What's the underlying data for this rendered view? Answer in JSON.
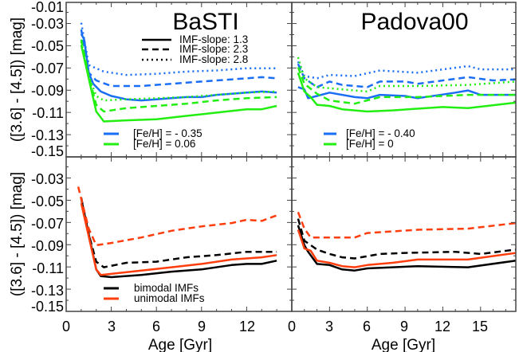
{
  "figure": {
    "ylabel": "([3.6] - [4.5]) [mag]",
    "xlabel": "Age [Gyr]",
    "y_ticks_top": [
      "-0.01",
      "-0.03",
      "-0.05",
      "-0.07",
      "-0.09",
      "-0.11",
      "-0.13",
      "-0.15"
    ],
    "y_ticks_bottom": [
      "-0.03",
      "-0.05",
      "-0.07",
      "-0.09",
      "-0.11",
      "-0.13",
      "-0.15"
    ],
    "x_ticks_left": [
      "0",
      "3",
      "6",
      "9",
      "12"
    ],
    "x_ticks_right": [
      "0",
      "3",
      "6",
      "9",
      "12",
      "15"
    ],
    "colors": {
      "blue": "#1a6ef5",
      "green": "#22ee11",
      "black": "#000000",
      "orange": "#ff3d0d"
    }
  },
  "chart_data": [
    {
      "type": "line",
      "panel": "top-left",
      "title": "BaSTI",
      "xlabel": "",
      "ylabel": "([3.6] - [4.5]) [mag]",
      "xlim": [
        0,
        15
      ],
      "ylim": [
        -0.151,
        -0.0115
      ],
      "legend": {
        "linestyles": [
          "IMF-slope: 1.3",
          "IMF-slope: 2.3",
          "IMF-slope: 2.8"
        ],
        "colors": [
          "[Fe/H] = - 0.35",
          "[Fe/H] = 0.06"
        ]
      },
      "series": [
        {
          "name": "[Fe/H]=-0.35, IMF-slope 1.3",
          "color": "blue",
          "style": "solid",
          "x": [
            1.0,
            1.2,
            1.5,
            1.8,
            2.3,
            3,
            4,
            5,
            6,
            7,
            8,
            9,
            10,
            11,
            12,
            13,
            14
          ],
          "y": [
            -0.04,
            -0.045,
            -0.075,
            -0.085,
            -0.092,
            -0.096,
            -0.099,
            -0.1,
            -0.099,
            -0.098,
            -0.097,
            -0.097,
            -0.095,
            -0.094,
            -0.093,
            -0.092,
            -0.093
          ]
        },
        {
          "name": "[Fe/H]=-0.35, IMF-slope 2.3",
          "color": "blue",
          "style": "dashed",
          "x": [
            1.0,
            1.5,
            2,
            3,
            5,
            7,
            9,
            11,
            13,
            14
          ],
          "y": [
            -0.036,
            -0.075,
            -0.082,
            -0.087,
            -0.087,
            -0.085,
            -0.083,
            -0.081,
            -0.079,
            -0.08
          ]
        },
        {
          "name": "[Fe/H]=-0.35, IMF-slope 2.8",
          "color": "blue",
          "style": "dotted",
          "x": [
            1.0,
            1.5,
            2.5,
            4,
            6,
            8,
            10,
            12,
            14
          ],
          "y": [
            -0.03,
            -0.068,
            -0.074,
            -0.077,
            -0.076,
            -0.074,
            -0.073,
            -0.071,
            -0.071
          ]
        },
        {
          "name": "[Fe/H]=0.06, IMF-slope 1.3",
          "color": "green",
          "style": "solid",
          "x": [
            1.0,
            1.5,
            2,
            2.5,
            4,
            6,
            8,
            10,
            12,
            13,
            14
          ],
          "y": [
            -0.05,
            -0.08,
            -0.11,
            -0.119,
            -0.118,
            -0.117,
            -0.114,
            -0.111,
            -0.108,
            -0.108,
            -0.105
          ]
        },
        {
          "name": "[Fe/H]=0.06, IMF-slope 2.3",
          "color": "green",
          "style": "dashed",
          "x": [
            1.0,
            1.5,
            2,
            2.5,
            4,
            6,
            8,
            10,
            12,
            14
          ],
          "y": [
            -0.045,
            -0.078,
            -0.104,
            -0.11,
            -0.107,
            -0.105,
            -0.103,
            -0.1,
            -0.098,
            -0.097
          ]
        },
        {
          "name": "[Fe/H]=0.06, IMF-slope 2.8",
          "color": "green",
          "style": "dotted",
          "x": [
            1.0,
            1.5,
            2,
            2.5,
            4,
            6,
            8,
            10,
            12,
            14
          ],
          "y": [
            -0.047,
            -0.078,
            -0.096,
            -0.1,
            -0.099,
            -0.098,
            -0.097,
            -0.095,
            -0.093,
            -0.092
          ]
        }
      ]
    },
    {
      "type": "line",
      "panel": "top-right",
      "title": "Padova00",
      "xlim": [
        0,
        17.8
      ],
      "ylim": [
        -0.151,
        -0.0115
      ],
      "legend": {
        "colors": [
          "[Fe/H] = - 0.40",
          "[Fe/H] = 0"
        ]
      },
      "series": [
        {
          "name": "[Fe/H]=-0.40, IMF-slope 1.3",
          "color": "blue",
          "style": "solid",
          "x": [
            0.5,
            1,
            1.3,
            2,
            3,
            5,
            6,
            7,
            9,
            10,
            13,
            14,
            15,
            17.8
          ],
          "y": [
            -0.088,
            -0.09,
            -0.098,
            -0.096,
            -0.093,
            -0.097,
            -0.098,
            -0.095,
            -0.096,
            -0.098,
            -0.093,
            -0.091,
            -0.095,
            -0.095
          ]
        },
        {
          "name": "[Fe/H]=-0.40, IMF-slope 2.3",
          "color": "blue",
          "style": "dashed",
          "x": [
            0.5,
            1,
            2,
            3,
            4,
            6,
            7,
            9,
            10,
            14,
            16,
            17.8
          ],
          "y": [
            -0.067,
            -0.08,
            -0.088,
            -0.083,
            -0.086,
            -0.088,
            -0.083,
            -0.083,
            -0.085,
            -0.079,
            -0.082,
            -0.081
          ]
        },
        {
          "name": "[Fe/H]=-0.40, IMF-slope 2.8",
          "color": "blue",
          "style": "dotted",
          "x": [
            0.5,
            1,
            2,
            3,
            5,
            7,
            10,
            14,
            15,
            17.8
          ],
          "y": [
            -0.065,
            -0.078,
            -0.08,
            -0.077,
            -0.078,
            -0.073,
            -0.075,
            -0.069,
            -0.072,
            -0.072
          ]
        },
        {
          "name": "[Fe/H]=0, IMF-slope 1.3",
          "color": "green",
          "style": "solid",
          "x": [
            0.5,
            1,
            1.5,
            2,
            3,
            4,
            6,
            8,
            12,
            14,
            17.8
          ],
          "y": [
            -0.075,
            -0.092,
            -0.097,
            -0.104,
            -0.105,
            -0.108,
            -0.11,
            -0.109,
            -0.106,
            -0.107,
            -0.102
          ]
        },
        {
          "name": "[Fe/H]=0, IMF-slope 2.3",
          "color": "green",
          "style": "dashed",
          "x": [
            0.5,
            1,
            2,
            3,
            5,
            7,
            10,
            14,
            17.8
          ],
          "y": [
            -0.07,
            -0.085,
            -0.094,
            -0.1,
            -0.103,
            -0.097,
            -0.097,
            -0.095,
            -0.095
          ]
        },
        {
          "name": "[Fe/H]=0, IMF-slope 2.8",
          "color": "green",
          "style": "dotted",
          "x": [
            0.5,
            1,
            2,
            4,
            6,
            7,
            10,
            14,
            17.8
          ],
          "y": [
            -0.061,
            -0.08,
            -0.088,
            -0.09,
            -0.092,
            -0.087,
            -0.087,
            -0.086,
            -0.083
          ]
        }
      ]
    },
    {
      "type": "line",
      "panel": "bottom-left",
      "xlabel": "Age [Gyr]",
      "ylabel": "([3.6] - [4.5]) [mag]",
      "xlim": [
        0,
        15
      ],
      "ylim": [
        -0.15,
        -0.01
      ],
      "legend": {
        "colors": [
          "bimodal IMFs",
          "unimodal IMFs"
        ]
      },
      "series": [
        {
          "name": "bimodal IMF-slope 1.3",
          "color": "black",
          "style": "solid",
          "x": [
            1.0,
            1.5,
            2,
            2.3,
            3,
            5,
            7,
            9,
            11,
            12,
            13,
            14
          ],
          "y": [
            -0.048,
            -0.08,
            -0.112,
            -0.118,
            -0.119,
            -0.117,
            -0.114,
            -0.112,
            -0.108,
            -0.107,
            -0.107,
            -0.104
          ]
        },
        {
          "name": "bimodal IMF-slope 2.3",
          "color": "black",
          "style": "dashed",
          "x": [
            1.0,
            1.5,
            2,
            2.5,
            4,
            6,
            8,
            10,
            12,
            14
          ],
          "y": [
            -0.047,
            -0.08,
            -0.105,
            -0.11,
            -0.106,
            -0.105,
            -0.101,
            -0.099,
            -0.096,
            -0.096
          ]
        },
        {
          "name": "unimodal IMF-slope 1.3",
          "color": "orange",
          "style": "solid",
          "x": [
            1.0,
            1.5,
            2,
            2.3,
            3,
            5,
            7,
            9,
            11,
            12,
            13,
            14
          ],
          "y": [
            -0.052,
            -0.082,
            -0.112,
            -0.117,
            -0.116,
            -0.113,
            -0.11,
            -0.107,
            -0.103,
            -0.102,
            -0.101,
            -0.099
          ]
        },
        {
          "name": "unimodal IMF-slope 2.3",
          "color": "orange",
          "style": "dashed",
          "x": [
            0.8,
            1.5,
            2,
            3,
            5,
            7,
            9,
            11,
            12,
            13,
            14
          ],
          "y": [
            -0.037,
            -0.075,
            -0.09,
            -0.088,
            -0.083,
            -0.077,
            -0.073,
            -0.07,
            -0.067,
            -0.068,
            -0.063
          ]
        }
      ]
    },
    {
      "type": "line",
      "panel": "bottom-right",
      "xlabel": "Age [Gyr]",
      "xlim": [
        0,
        17.8
      ],
      "ylim": [
        -0.15,
        -0.01
      ],
      "series": [
        {
          "name": "bimodal IMF-slope 1.3",
          "color": "black",
          "style": "solid",
          "x": [
            0.5,
            1,
            1.3,
            2,
            3,
            4,
            5,
            6,
            8,
            10,
            14,
            17.8
          ],
          "y": [
            -0.072,
            -0.09,
            -0.096,
            -0.107,
            -0.108,
            -0.112,
            -0.113,
            -0.111,
            -0.11,
            -0.109,
            -0.11,
            -0.104
          ]
        },
        {
          "name": "bimodal IMF-slope 2.3",
          "color": "black",
          "style": "dashed",
          "x": [
            0.5,
            1,
            2,
            3,
            4,
            5,
            7,
            9,
            13,
            15,
            17.8
          ],
          "y": [
            -0.066,
            -0.086,
            -0.094,
            -0.098,
            -0.101,
            -0.102,
            -0.098,
            -0.097,
            -0.096,
            -0.098,
            -0.094
          ]
        },
        {
          "name": "unimodal IMF-slope 1.3",
          "color": "orange",
          "style": "solid",
          "x": [
            0.5,
            1,
            1.5,
            2,
            3,
            4,
            5,
            6,
            8,
            10,
            14,
            17.8
          ],
          "y": [
            -0.076,
            -0.093,
            -0.095,
            -0.104,
            -0.106,
            -0.109,
            -0.11,
            -0.108,
            -0.106,
            -0.103,
            -0.103,
            -0.097
          ]
        },
        {
          "name": "unimodal IMF-slope 2.3",
          "color": "orange",
          "style": "dashed",
          "x": [
            0.5,
            1,
            1.5,
            2,
            5,
            6,
            10,
            14,
            17.8
          ],
          "y": [
            -0.06,
            -0.075,
            -0.083,
            -0.083,
            -0.083,
            -0.079,
            -0.076,
            -0.075,
            -0.07
          ]
        }
      ]
    }
  ]
}
